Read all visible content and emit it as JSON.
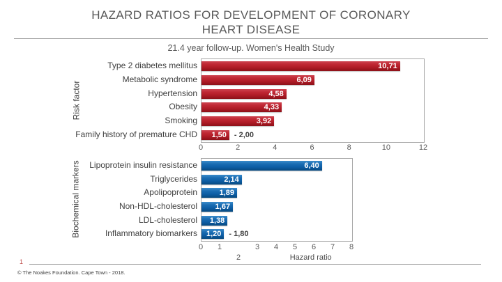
{
  "slide": {
    "title_lines": [
      "HAZARD RATIOS FOR DEVELOPMENT OF CORONARY",
      "HEART DISEASE"
    ],
    "subtitle": "21.4 year follow-up. Women's Health Study",
    "page_number": "1",
    "copyright": "© The Noakes Foundation. Cape Town - 2018."
  },
  "colors": {
    "title_text": "#595959",
    "risk_bar_red": "#b01c26",
    "biomarker_bar_blue": "#0d5ea6",
    "bar_value_text": "#ffffff",
    "page_number_red": "#c0504d",
    "plot_border": "#a6a6a6"
  },
  "chart_data": [
    {
      "type": "bar",
      "orientation": "horizontal",
      "group_label": "Risk factor",
      "categories": [
        "Type 2 diabetes mellitus",
        "Metabolic syndrome",
        "Hypertension",
        "Obesity",
        "Smoking",
        "Family history of premature CHD"
      ],
      "values": [
        10.71,
        6.09,
        4.58,
        4.33,
        3.92,
        1.5
      ],
      "value_labels": [
        "10,71",
        "6,09",
        "4,58",
        "4,33",
        "3,92",
        "1,50"
      ],
      "outside_labels": [
        "",
        "",
        "",
        "",
        "",
        "- 2,00"
      ],
      "xlim": [
        0,
        12
      ],
      "ticks": [
        {
          "label": "0",
          "value": 0
        },
        {
          "label": "2",
          "value": 2
        },
        {
          "label": "4",
          "value": 4
        },
        {
          "label": "6",
          "value": 6
        },
        {
          "label": "8",
          "value": 8
        },
        {
          "label": "10",
          "value": 10
        },
        {
          "label": "12",
          "value": 12
        }
      ],
      "grid": false,
      "legend": false
    },
    {
      "type": "bar",
      "orientation": "horizontal",
      "group_label": "Biochemical markers",
      "categories": [
        "Lipoprotein insulin resistance",
        "Triglycerides",
        "Apolipoprotein",
        "Non-HDL-cholesterol",
        "LDL-cholesterol",
        "Inflammatory biomarkers"
      ],
      "values": [
        6.4,
        2.14,
        1.89,
        1.67,
        1.38,
        1.2
      ],
      "value_labels": [
        "6,40",
        "2,14",
        "1,89",
        "1,67",
        "1,38",
        "1,20"
      ],
      "outside_labels": [
        "",
        "",
        "",
        "",
        "",
        "- 1,80"
      ],
      "xlim": [
        0,
        8
      ],
      "ticks": [
        {
          "label": "0",
          "value": 0
        },
        {
          "label": "1",
          "value": 1
        },
        {
          "label": "3",
          "value": 3
        },
        {
          "label": "4",
          "value": 4
        },
        {
          "label": "5",
          "value": 5
        },
        {
          "label": "6",
          "value": 6
        },
        {
          "label": "7",
          "value": 7
        },
        {
          "label": "8",
          "value": 8
        }
      ],
      "displaced_tick": {
        "label": "2",
        "value": 2
      },
      "xlabel": "Hazard ratio",
      "grid": false,
      "legend": false
    }
  ]
}
